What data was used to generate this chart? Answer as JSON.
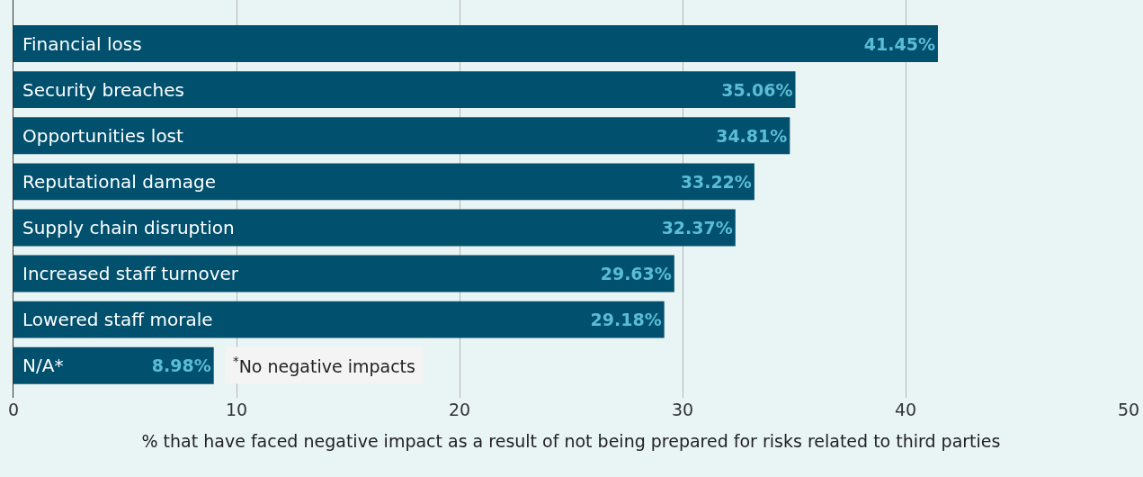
{
  "chart_data": {
    "type": "bar",
    "orientation": "horizontal",
    "xlabel": "% that have faced negative impact as a result of not being prepared for risks related to third parties",
    "categories": [
      "Financial loss",
      "Security breaches",
      "Opportunities lost",
      "Reputational damage",
      "Supply chain disruption",
      "Increased staff turnover",
      "Lowered staff morale",
      "N/A*"
    ],
    "values": [
      41.45,
      35.06,
      34.81,
      33.22,
      32.37,
      29.63,
      29.18,
      8.98
    ],
    "value_labels": [
      "41.45%",
      "35.06%",
      "34.81%",
      "33.22%",
      "32.37%",
      "29.63%",
      "29.18%",
      "8.98%"
    ],
    "color": "#00506e",
    "xlim": [
      0,
      50
    ],
    "xticks": [
      0,
      10,
      20,
      30,
      40,
      50
    ],
    "grid": "x",
    "annotations": [
      "$^{*}$No negative impacts"
    ]
  }
}
